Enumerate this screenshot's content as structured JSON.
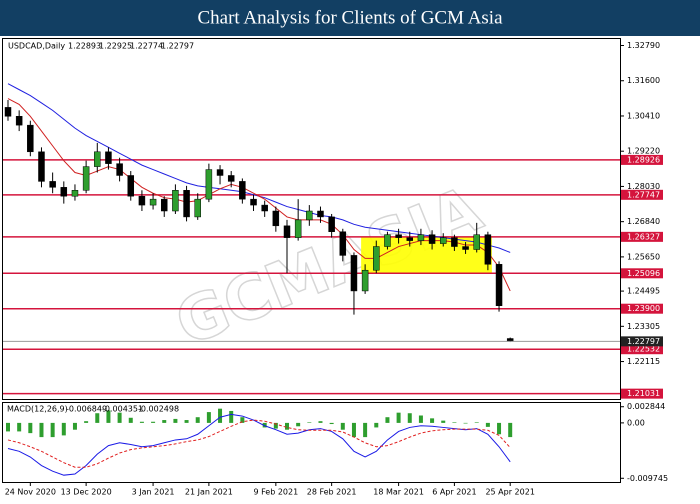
{
  "chart_data": {
    "type": "candlestick",
    "title": "Chart Analysis for Clients of GCM Asia",
    "symbol": "USDCAD,Daily",
    "watermark": "GCMASIA",
    "up_color": "#2e9e2e",
    "down_color": "#000000",
    "candles": [
      [
        1.307,
        1.3095,
        1.3025,
        1.304
      ],
      [
        1.304,
        1.306,
        1.299,
        1.301
      ],
      [
        1.301,
        1.3025,
        1.2905,
        1.292
      ],
      [
        1.292,
        1.2935,
        1.28,
        1.282
      ],
      [
        1.282,
        1.285,
        1.278,
        1.28
      ],
      [
        1.28,
        1.282,
        1.2745,
        1.277
      ],
      [
        1.277,
        1.281,
        1.2755,
        1.279
      ],
      [
        1.279,
        1.289,
        1.278,
        1.287
      ],
      [
        1.287,
        1.295,
        1.285,
        1.292
      ],
      [
        1.292,
        1.2935,
        1.286,
        1.288
      ],
      [
        1.288,
        1.29,
        1.282,
        1.284
      ],
      [
        1.284,
        1.2855,
        1.2755,
        1.277
      ],
      [
        1.277,
        1.279,
        1.272,
        1.274
      ],
      [
        1.274,
        1.278,
        1.2725,
        1.276
      ],
      [
        1.276,
        1.277,
        1.27,
        1.272
      ],
      [
        1.272,
        1.281,
        1.271,
        1.279
      ],
      [
        1.279,
        1.2805,
        1.2685,
        1.27
      ],
      [
        1.27,
        1.278,
        1.269,
        1.276
      ],
      [
        1.276,
        1.288,
        1.275,
        1.286
      ],
      [
        1.286,
        1.2875,
        1.281,
        1.284
      ],
      [
        1.284,
        1.2855,
        1.28,
        1.282
      ],
      [
        1.282,
        1.283,
        1.2745,
        1.276
      ],
      [
        1.276,
        1.2775,
        1.272,
        1.274
      ],
      [
        1.274,
        1.2755,
        1.27,
        1.272
      ],
      [
        1.272,
        1.2735,
        1.265,
        1.267
      ],
      [
        1.267,
        1.269,
        1.251,
        1.263
      ],
      [
        1.263,
        1.276,
        1.262,
        1.269
      ],
      [
        1.269,
        1.274,
        1.267,
        1.272
      ],
      [
        1.272,
        1.2735,
        1.268,
        1.27
      ],
      [
        1.27,
        1.271,
        1.263,
        1.265
      ],
      [
        1.265,
        1.266,
        1.255,
        1.257
      ],
      [
        1.257,
        1.258,
        1.237,
        1.245
      ],
      [
        1.245,
        1.254,
        1.244,
        1.252
      ],
      [
        1.252,
        1.262,
        1.251,
        1.26
      ],
      [
        1.26,
        1.265,
        1.259,
        1.264
      ],
      [
        1.264,
        1.266,
        1.261,
        1.263
      ],
      [
        1.263,
        1.265,
        1.26,
        1.262
      ],
      [
        1.262,
        1.266,
        1.2605,
        1.264
      ],
      [
        1.264,
        1.2655,
        1.259,
        1.261
      ],
      [
        1.261,
        1.2645,
        1.26,
        1.263
      ],
      [
        1.263,
        1.264,
        1.2585,
        1.26
      ],
      [
        1.26,
        1.2615,
        1.2575,
        1.259
      ],
      [
        1.259,
        1.268,
        1.258,
        1.264
      ],
      [
        1.264,
        1.265,
        1.252,
        1.254
      ],
      [
        1.254,
        1.255,
        1.238,
        1.24
      ],
      [
        1.22893,
        1.22925,
        1.22774,
        1.22797
      ]
    ],
    "ma_slow": {
      "color": "#2020e0",
      "values": [
        1.315,
        1.313,
        1.311,
        1.3085,
        1.306,
        1.303,
        1.3,
        1.2975,
        1.2955,
        1.2935,
        1.2915,
        1.2895,
        1.2875,
        1.286,
        1.2845,
        1.283,
        1.2815,
        1.2805,
        1.28,
        1.2795,
        1.279,
        1.2785,
        1.2775,
        1.2765,
        1.275,
        1.2735,
        1.2725,
        1.2715,
        1.2705,
        1.27,
        1.269,
        1.2675,
        1.2665,
        1.266,
        1.2655,
        1.265,
        1.2645,
        1.264,
        1.2635,
        1.263,
        1.2625,
        1.262,
        1.2615,
        1.2605,
        1.2595,
        1.258
      ]
    },
    "ma_fast": {
      "color": "#d02020",
      "values": [
        1.31,
        1.308,
        1.304,
        1.299,
        1.294,
        1.289,
        1.285,
        1.284,
        1.2855,
        1.287,
        1.286,
        1.283,
        1.28,
        1.278,
        1.2765,
        1.276,
        1.275,
        1.2755,
        1.2775,
        1.2795,
        1.281,
        1.28,
        1.278,
        1.276,
        1.273,
        1.27,
        1.269,
        1.269,
        1.269,
        1.2675,
        1.264,
        1.259,
        1.256,
        1.256,
        1.258,
        1.26,
        1.261,
        1.262,
        1.262,
        1.262,
        1.2615,
        1.2605,
        1.2605,
        1.258,
        1.253,
        1.245
      ]
    },
    "ylim": [
      1.2085,
      1.3301
    ],
    "yticks": [
      {
        "value": 1.3279,
        "label": "1.32790"
      },
      {
        "value": 1.316,
        "label": "1.31600"
      },
      {
        "value": 1.3041,
        "label": "1.30410"
      },
      {
        "value": 1.2922,
        "label": "1.29220"
      },
      {
        "value": 1.2803,
        "label": "1.28030"
      },
      {
        "value": 1.2684,
        "label": "1.26840"
      },
      {
        "value": 1.2565,
        "label": "1.25650"
      },
      1.24495,
      1.23305,
      1.22115
    ],
    "levels": {
      "color": "#d4143c",
      "values": [
        1.28926,
        1.27747,
        1.26327,
        1.25096,
        {
          "value": 1.239,
          "label": "1.23900"
        },
        1.22532,
        1.21031
      ]
    },
    "macd": {
      "label": "MACD(12,26,9)",
      "main": {
        "color": "#1a1ae6",
        "values": [
          -0.0045,
          -0.005,
          -0.006,
          -0.0075,
          -0.0085,
          -0.0092,
          -0.009,
          -0.0075,
          -0.0055,
          -0.004,
          -0.0035,
          -0.0038,
          -0.0042,
          -0.004,
          -0.0035,
          -0.003,
          -0.0028,
          -0.002,
          -0.0005,
          0.001,
          0.0015,
          0.0012,
          0.0005,
          -0.0005,
          -0.0012,
          -0.002,
          -0.0018,
          -0.0012,
          -0.001,
          -0.0015,
          -0.0028,
          -0.005,
          -0.006,
          -0.005,
          -0.003,
          -0.0015,
          -0.0008,
          -0.0005,
          -0.0006,
          -0.0008,
          -0.001,
          -0.0012,
          -0.001,
          -0.002,
          -0.0042,
          -0.006849
        ]
      },
      "signal": {
        "color": "#e02020",
        "values": [
          -0.003,
          -0.0035,
          -0.0042,
          -0.005,
          -0.006,
          -0.007,
          -0.0078,
          -0.0078,
          -0.0072,
          -0.0062,
          -0.0053,
          -0.0047,
          -0.0044,
          -0.0042,
          -0.004,
          -0.0037,
          -0.0033,
          -0.003,
          -0.0024,
          -0.0015,
          -0.0006,
          0.0002,
          0.0005,
          0.0003,
          -0.0002,
          -0.0008,
          -0.0012,
          -0.0013,
          -0.0013,
          -0.0013,
          -0.0016,
          -0.0025,
          -0.0035,
          -0.0042,
          -0.004,
          -0.0033,
          -0.0025,
          -0.0018,
          -0.0014,
          -0.0012,
          -0.0011,
          -0.0011,
          -0.0011,
          -0.0013,
          -0.0022,
          -0.004351
        ]
      },
      "histogram": {
        "color": "#2e9e2e",
        "values": [
          -0.0015,
          -0.0015,
          -0.0018,
          -0.0025,
          -0.0025,
          -0.0022,
          -0.0012,
          0.0003,
          0.0017,
          0.0022,
          0.0018,
          0.0009,
          0.0002,
          0.0002,
          0.0005,
          0.0007,
          0.0005,
          0.001,
          0.0019,
          0.0025,
          0.0021,
          0.001,
          0,
          -0.0008,
          -0.001,
          -0.0012,
          -0.0006,
          0.0001,
          0.0003,
          -0.0002,
          -0.0012,
          -0.0025,
          -0.0025,
          -0.0008,
          0.001,
          0.0018,
          0.0017,
          0.0013,
          0.0008,
          0.0004,
          0.0001,
          -0.0001,
          0.0001,
          -0.0007,
          -0.002,
          -0.002498
        ]
      },
      "ylim": [
        -0.0104,
        0.0035
      ],
      "yticks": [
        0.002844,
        {
          "value": 0,
          "label": "0.00"
        },
        -0.009745
      ]
    },
    "xticks": [
      {
        "value": 2,
        "label": "24 Nov 2020"
      },
      {
        "value": 7,
        "label": "13 Dec 2020"
      },
      {
        "value": 13,
        "label": "3 Jan 2021"
      },
      {
        "value": 18,
        "label": "21 Jan 2021"
      },
      {
        "value": 24,
        "label": "9 Feb 2021"
      },
      {
        "value": 29,
        "label": "28 Feb 2021"
      },
      {
        "value": 35,
        "label": "18 Mar 2021"
      },
      {
        "value": 40,
        "label": "6 Apr 2021"
      },
      {
        "value": 45,
        "label": "25 Apr 2021"
      }
    ]
  }
}
